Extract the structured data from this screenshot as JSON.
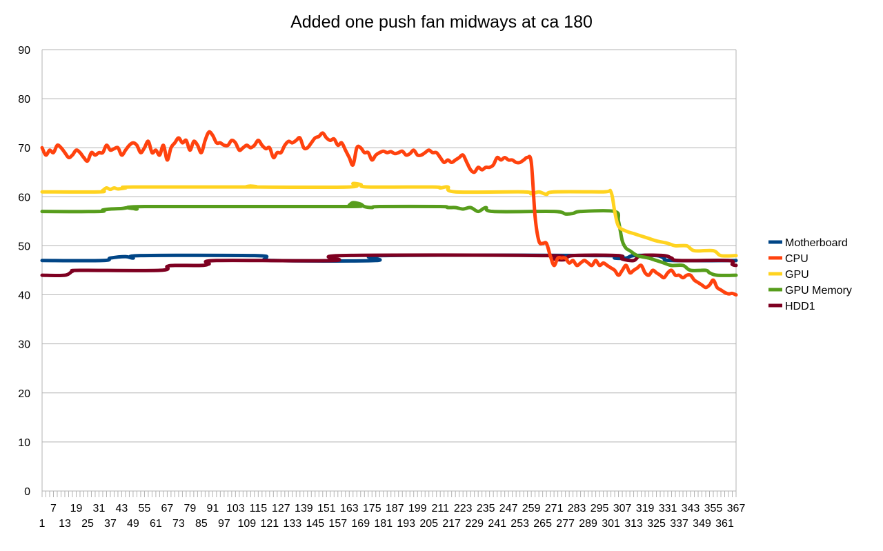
{
  "chart_data": {
    "type": "line",
    "title": "Added one push fan midways at ca 180",
    "xlabel": "",
    "ylabel": "",
    "ylim": [
      0,
      90
    ],
    "yticks": [
      0,
      10,
      20,
      30,
      40,
      50,
      60,
      70,
      80,
      90
    ],
    "xrange": [
      1,
      367
    ],
    "xticks_row1": [
      7,
      19,
      31,
      43,
      55,
      67,
      79,
      91,
      103,
      115,
      127,
      139,
      151,
      163,
      175,
      187,
      199,
      211,
      223,
      235,
      247,
      259,
      271,
      283,
      295,
      307,
      319,
      331,
      343,
      355,
      367
    ],
    "xticks_row2": [
      1,
      13,
      25,
      37,
      49,
      61,
      73,
      85,
      97,
      109,
      121,
      133,
      145,
      157,
      169,
      181,
      193,
      205,
      217,
      229,
      241,
      253,
      265,
      277,
      289,
      301,
      313,
      325,
      337,
      349,
      361
    ],
    "grid": true,
    "legend": "right",
    "series": [
      {
        "name": "Motherboard",
        "color": "#004586",
        "points": [
          [
            1,
            47
          ],
          [
            33,
            47
          ],
          [
            37,
            47.5
          ],
          [
            45,
            47.8
          ],
          [
            49,
            47.5
          ],
          [
            53,
            48
          ],
          [
            113,
            48
          ],
          [
            119,
            47.5
          ],
          [
            123,
            47
          ],
          [
            177,
            47
          ],
          [
            181,
            48
          ],
          [
            297,
            48
          ],
          [
            303,
            47.5
          ],
          [
            309,
            47.5
          ],
          [
            313,
            48
          ],
          [
            325,
            48
          ],
          [
            329,
            47.5
          ],
          [
            333,
            47
          ],
          [
            367,
            47
          ]
        ]
      },
      {
        "name": "CPU",
        "color": "#ff420e",
        "points": [
          [
            1,
            70
          ],
          [
            3,
            68.5
          ],
          [
            5,
            69.5
          ],
          [
            7,
            69
          ],
          [
            9,
            70.5
          ],
          [
            11,
            70
          ],
          [
            13,
            69
          ],
          [
            15,
            68
          ],
          [
            17,
            68.5
          ],
          [
            19,
            69.5
          ],
          [
            21,
            69
          ],
          [
            23,
            68
          ],
          [
            25,
            67.3
          ],
          [
            27,
            69
          ],
          [
            29,
            68.5
          ],
          [
            31,
            69
          ],
          [
            33,
            69
          ],
          [
            35,
            70.5
          ],
          [
            37,
            69.5
          ],
          [
            39,
            69.8
          ],
          [
            41,
            70
          ],
          [
            43,
            68.5
          ],
          [
            45,
            69.5
          ],
          [
            47,
            70.5
          ],
          [
            49,
            71
          ],
          [
            51,
            70.5
          ],
          [
            53,
            69
          ],
          [
            55,
            70
          ],
          [
            57,
            71.3
          ],
          [
            59,
            69
          ],
          [
            61,
            69.5
          ],
          [
            63,
            68.5
          ],
          [
            65,
            70.5
          ],
          [
            67,
            67.5
          ],
          [
            69,
            70
          ],
          [
            71,
            71
          ],
          [
            73,
            72
          ],
          [
            75,
            71
          ],
          [
            77,
            71.5
          ],
          [
            79,
            69.5
          ],
          [
            81,
            71.3
          ],
          [
            83,
            70.5
          ],
          [
            85,
            69
          ],
          [
            87,
            71.5
          ],
          [
            89,
            73.2
          ],
          [
            91,
            72.5
          ],
          [
            93,
            71
          ],
          [
            95,
            71
          ],
          [
            97,
            70.5
          ],
          [
            99,
            70.5
          ],
          [
            101,
            71.5
          ],
          [
            103,
            71
          ],
          [
            105,
            69.5
          ],
          [
            107,
            70
          ],
          [
            109,
            70.5
          ],
          [
            111,
            70
          ],
          [
            113,
            70.5
          ],
          [
            115,
            71.5
          ],
          [
            117,
            70.5
          ],
          [
            119,
            69.8
          ],
          [
            121,
            70
          ],
          [
            123,
            68
          ],
          [
            125,
            69
          ],
          [
            127,
            69
          ],
          [
            129,
            70.5
          ],
          [
            131,
            71.3
          ],
          [
            133,
            71
          ],
          [
            135,
            71.5
          ],
          [
            137,
            72
          ],
          [
            139,
            70
          ],
          [
            141,
            70
          ],
          [
            143,
            71
          ],
          [
            145,
            72
          ],
          [
            147,
            72.3
          ],
          [
            149,
            73
          ],
          [
            151,
            72
          ],
          [
            153,
            71.5
          ],
          [
            155,
            71.8
          ],
          [
            157,
            70.5
          ],
          [
            159,
            71
          ],
          [
            161,
            69.5
          ],
          [
            163,
            68
          ],
          [
            165,
            66.5
          ],
          [
            167,
            70
          ],
          [
            169,
            70
          ],
          [
            171,
            69
          ],
          [
            173,
            69
          ],
          [
            175,
            67.5
          ],
          [
            177,
            68.5
          ],
          [
            179,
            69
          ],
          [
            181,
            69.3
          ],
          [
            183,
            69
          ],
          [
            185,
            69.2
          ],
          [
            187,
            68.8
          ],
          [
            189,
            69
          ],
          [
            191,
            69.3
          ],
          [
            193,
            68.5
          ],
          [
            195,
            68.8
          ],
          [
            197,
            69.5
          ],
          [
            199,
            68.5
          ],
          [
            201,
            68.5
          ],
          [
            203,
            69
          ],
          [
            205,
            69.5
          ],
          [
            207,
            69
          ],
          [
            209,
            69
          ],
          [
            211,
            68
          ],
          [
            213,
            67
          ],
          [
            215,
            67.5
          ],
          [
            217,
            67
          ],
          [
            219,
            67.5
          ],
          [
            221,
            68
          ],
          [
            223,
            68.5
          ],
          [
            225,
            67
          ],
          [
            227,
            65.5
          ],
          [
            229,
            65
          ],
          [
            231,
            66
          ],
          [
            233,
            65.5
          ],
          [
            235,
            66
          ],
          [
            237,
            66
          ],
          [
            239,
            66.5
          ],
          [
            241,
            68
          ],
          [
            243,
            67.5
          ],
          [
            245,
            68
          ],
          [
            247,
            67.5
          ],
          [
            249,
            67.5
          ],
          [
            251,
            67
          ],
          [
            253,
            67
          ],
          [
            255,
            67.5
          ],
          [
            257,
            68
          ],
          [
            259,
            67
          ],
          [
            261,
            56
          ],
          [
            263,
            51
          ],
          [
            265,
            50.5
          ],
          [
            267,
            50.5
          ],
          [
            269,
            48
          ],
          [
            271,
            46
          ],
          [
            273,
            47.5
          ],
          [
            275,
            47.5
          ],
          [
            277,
            47.5
          ],
          [
            279,
            46.5
          ],
          [
            281,
            47
          ],
          [
            283,
            46
          ],
          [
            285,
            46.5
          ],
          [
            287,
            47
          ],
          [
            289,
            46.5
          ],
          [
            291,
            46
          ],
          [
            293,
            47
          ],
          [
            295,
            46
          ],
          [
            297,
            46.5
          ],
          [
            299,
            46
          ],
          [
            301,
            45.5
          ],
          [
            303,
            45
          ],
          [
            305,
            44
          ],
          [
            307,
            45
          ],
          [
            309,
            46
          ],
          [
            311,
            44.5
          ],
          [
            313,
            45
          ],
          [
            315,
            45.5
          ],
          [
            317,
            46
          ],
          [
            319,
            44.5
          ],
          [
            321,
            44
          ],
          [
            323,
            45
          ],
          [
            325,
            44.5
          ],
          [
            327,
            44
          ],
          [
            329,
            43.5
          ],
          [
            331,
            44.5
          ],
          [
            333,
            45
          ],
          [
            335,
            44
          ],
          [
            337,
            44
          ],
          [
            339,
            43.5
          ],
          [
            341,
            44
          ],
          [
            343,
            44
          ],
          [
            345,
            43
          ],
          [
            347,
            42.5
          ],
          [
            349,
            42
          ],
          [
            351,
            41.5
          ],
          [
            353,
            42
          ],
          [
            355,
            43
          ],
          [
            357,
            41.5
          ],
          [
            359,
            41
          ],
          [
            361,
            40.5
          ],
          [
            363,
            40.2
          ],
          [
            365,
            40.3
          ],
          [
            367,
            40
          ]
        ]
      },
      {
        "name": "GPU",
        "color": "#ffd320",
        "points": [
          [
            1,
            61
          ],
          [
            31,
            61
          ],
          [
            33,
            61.3
          ],
          [
            35,
            61.8
          ],
          [
            37,
            61.5
          ],
          [
            39,
            61.8
          ],
          [
            41,
            61.6
          ],
          [
            45,
            61.8
          ],
          [
            49,
            62
          ],
          [
            109,
            62
          ],
          [
            111,
            62.2
          ],
          [
            113,
            62
          ],
          [
            163,
            62
          ],
          [
            165,
            62.7
          ],
          [
            169,
            62.5
          ],
          [
            173,
            62
          ],
          [
            207,
            62
          ],
          [
            211,
            61.8
          ],
          [
            215,
            62
          ],
          [
            219,
            61
          ],
          [
            255,
            61
          ],
          [
            259,
            60.6
          ],
          [
            263,
            61
          ],
          [
            267,
            60.5
          ],
          [
            271,
            61
          ],
          [
            297,
            61
          ],
          [
            301,
            61
          ],
          [
            303,
            57
          ],
          [
            305,
            54
          ],
          [
            309,
            53
          ],
          [
            313,
            52.5
          ],
          [
            317,
            52
          ],
          [
            321,
            51.5
          ],
          [
            325,
            51
          ],
          [
            331,
            50.5
          ],
          [
            335,
            50
          ],
          [
            341,
            50
          ],
          [
            345,
            49
          ],
          [
            355,
            49
          ],
          [
            359,
            48
          ],
          [
            367,
            48
          ]
        ]
      },
      {
        "name": "GPU Memory",
        "color": "#579d1c",
        "points": [
          [
            1,
            57
          ],
          [
            31,
            57
          ],
          [
            33,
            57.3
          ],
          [
            37,
            57.5
          ],
          [
            43,
            57.6
          ],
          [
            47,
            57.8
          ],
          [
            51,
            57.5
          ],
          [
            55,
            58
          ],
          [
            161,
            58
          ],
          [
            163,
            58.3
          ],
          [
            165,
            58.8
          ],
          [
            169,
            58.5
          ],
          [
            171,
            58
          ],
          [
            175,
            57.8
          ],
          [
            179,
            58
          ],
          [
            211,
            58
          ],
          [
            215,
            57.8
          ],
          [
            219,
            57.8
          ],
          [
            223,
            57.5
          ],
          [
            227,
            57.8
          ],
          [
            231,
            57
          ],
          [
            235,
            57.8
          ],
          [
            239,
            57
          ],
          [
            271,
            57
          ],
          [
            277,
            56.5
          ],
          [
            281,
            56.6
          ],
          [
            285,
            57
          ],
          [
            303,
            57
          ],
          [
            305,
            55
          ],
          [
            307,
            51
          ],
          [
            309,
            49.5
          ],
          [
            311,
            49
          ],
          [
            315,
            48
          ],
          [
            321,
            47.5
          ],
          [
            325,
            47
          ],
          [
            329,
            46.5
          ],
          [
            333,
            46
          ],
          [
            339,
            46
          ],
          [
            343,
            45
          ],
          [
            351,
            45
          ],
          [
            353,
            44.5
          ],
          [
            357,
            44
          ],
          [
            367,
            44
          ]
        ]
      },
      {
        "name": "HDD1",
        "color": "#7e0021",
        "points": [
          [
            1,
            44
          ],
          [
            13,
            44
          ],
          [
            17,
            44.8
          ],
          [
            21,
            45
          ],
          [
            63,
            45
          ],
          [
            67,
            45.8
          ],
          [
            71,
            46
          ],
          [
            85,
            46
          ],
          [
            89,
            46.3
          ],
          [
            93,
            47
          ],
          [
            155,
            47
          ],
          [
            159,
            48
          ],
          [
            267,
            48
          ],
          [
            271,
            47.3
          ],
          [
            277,
            47.2
          ],
          [
            281,
            48
          ],
          [
            305,
            48
          ],
          [
            307,
            47.3
          ],
          [
            313,
            47
          ],
          [
            317,
            48
          ],
          [
            329,
            48
          ],
          [
            333,
            47.5
          ],
          [
            337,
            47
          ],
          [
            363,
            47
          ],
          [
            365,
            46.2
          ],
          [
            367,
            46
          ]
        ]
      }
    ]
  }
}
